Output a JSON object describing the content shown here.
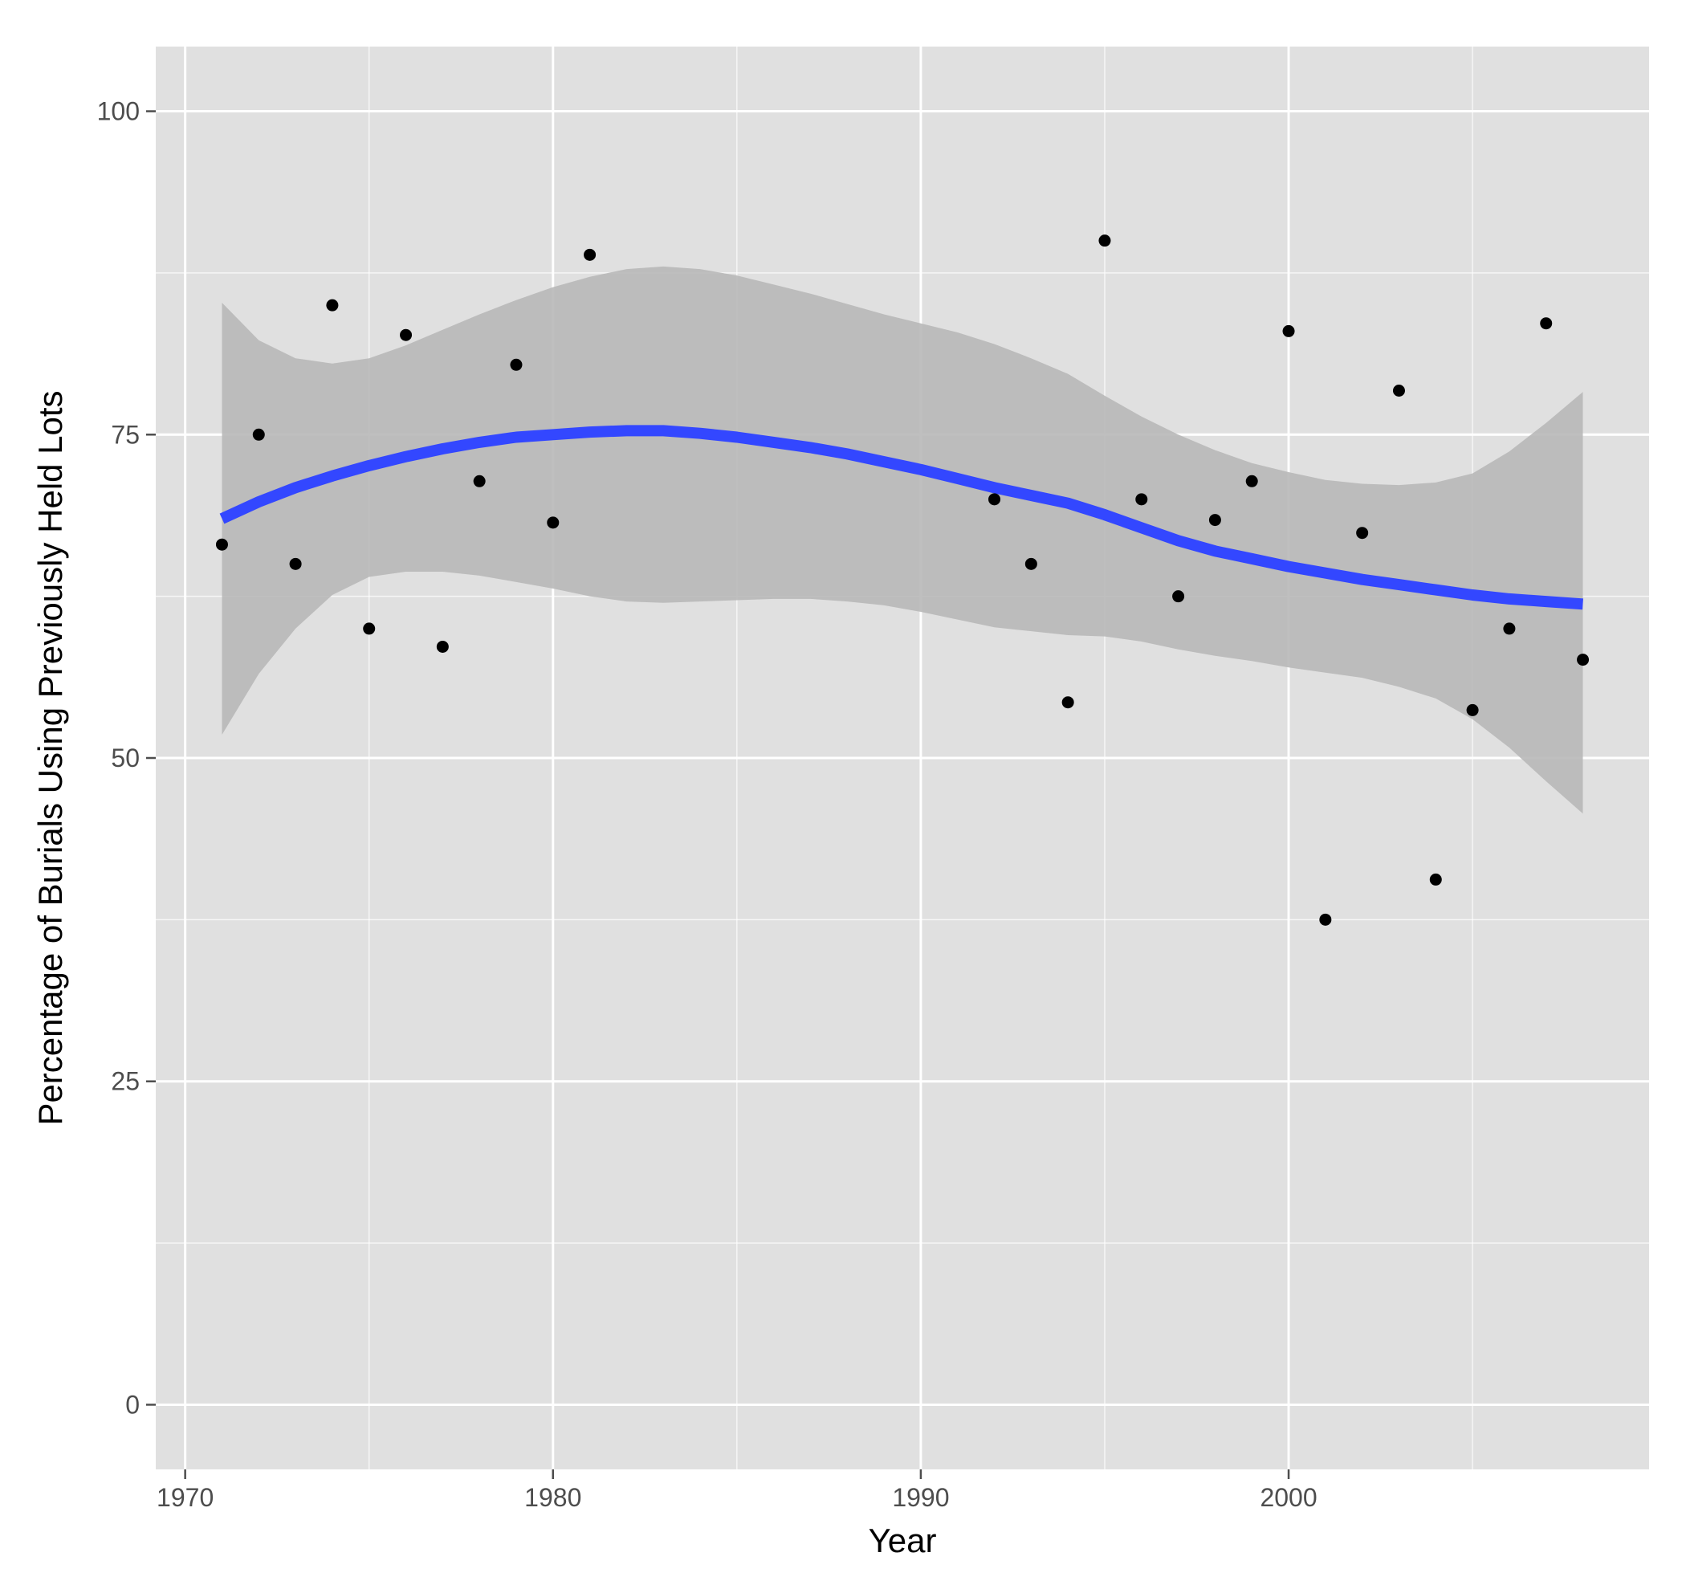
{
  "chart_data": {
    "type": "scatter",
    "title": "",
    "xlabel": "Year",
    "ylabel": "Percentage of Burials Using Previously Held Lots",
    "xlim": [
      1969.2,
      2009.8
    ],
    "ylim": [
      -5,
      105
    ],
    "x_ticks": [
      1970,
      1980,
      1990,
      2000
    ],
    "x_tick_labels": [
      "1970",
      "1980",
      "1990",
      "2000"
    ],
    "x_minor_ticks": [
      1975,
      1985,
      1995,
      2005
    ],
    "y_ticks": [
      0,
      25,
      50,
      75,
      100
    ],
    "y_tick_labels": [
      "0",
      "25",
      "50",
      "75",
      "100"
    ],
    "y_minor_ticks": [
      12.5,
      37.5,
      62.5,
      87.5
    ],
    "grid": true,
    "legend": "none",
    "colors": {
      "panel_background": "#e0e0e0",
      "grid": "#ffffff",
      "points": "#000000",
      "smooth_line": "#3347ff",
      "confidence_band": "#b8b8b8"
    },
    "points": {
      "x": [
        1971,
        1972,
        1973,
        1974,
        1975,
        1976,
        1977,
        1978,
        1979,
        1980,
        1981,
        1992,
        1993,
        1994,
        1995,
        1996,
        1997,
        1998,
        1999,
        2000,
        2001,
        2002,
        2003,
        2004,
        2005,
        2006,
        2007,
        2008
      ],
      "y": [
        66.5,
        75.0,
        65.0,
        85.0,
        60.0,
        82.7,
        58.6,
        71.4,
        80.4,
        68.2,
        88.9,
        70.0,
        65.0,
        54.3,
        90.0,
        70.0,
        62.5,
        68.4,
        71.4,
        83.0,
        37.5,
        67.4,
        78.4,
        40.6,
        53.7,
        60.0,
        83.6,
        57.6
      ]
    },
    "smooth": {
      "x": [
        1971,
        1972,
        1973,
        1974,
        1975,
        1976,
        1977,
        1978,
        1979,
        1980,
        1981,
        1982,
        1983,
        1984,
        1985,
        1986,
        1987,
        1988,
        1989,
        1990,
        1991,
        1992,
        1993,
        1994,
        1995,
        1996,
        1997,
        1998,
        1999,
        2000,
        2001,
        2002,
        2003,
        2004,
        2005,
        2006,
        2007,
        2008
      ],
      "y": [
        68.5,
        69.8,
        70.9,
        71.8,
        72.6,
        73.3,
        73.9,
        74.4,
        74.8,
        75.0,
        75.2,
        75.3,
        75.3,
        75.1,
        74.8,
        74.4,
        74.0,
        73.5,
        72.9,
        72.3,
        71.6,
        70.9,
        70.3,
        69.7,
        68.8,
        67.8,
        66.8,
        66.0,
        65.4,
        64.8,
        64.3,
        63.8,
        63.4,
        63.0,
        62.6,
        62.3,
        62.1,
        61.9
      ],
      "lower": [
        51.8,
        56.5,
        60.0,
        62.6,
        64.0,
        64.4,
        64.4,
        64.1,
        63.6,
        63.1,
        62.5,
        62.1,
        62.0,
        62.1,
        62.2,
        62.3,
        62.3,
        62.1,
        61.8,
        61.3,
        60.7,
        60.1,
        59.8,
        59.5,
        59.4,
        59.0,
        58.4,
        57.9,
        57.5,
        57.0,
        56.6,
        56.2,
        55.5,
        54.6,
        53.0,
        50.8,
        48.2,
        45.7
      ],
      "upper": [
        85.2,
        82.3,
        80.9,
        80.5,
        80.9,
        81.9,
        83.1,
        84.3,
        85.4,
        86.4,
        87.2,
        87.8,
        88.0,
        87.8,
        87.3,
        86.6,
        85.9,
        85.1,
        84.3,
        83.6,
        82.9,
        82.0,
        80.9,
        79.7,
        78.0,
        76.4,
        75.0,
        73.8,
        72.8,
        72.1,
        71.5,
        71.2,
        71.1,
        71.3,
        72.0,
        73.7,
        75.9,
        78.3
      ]
    }
  }
}
